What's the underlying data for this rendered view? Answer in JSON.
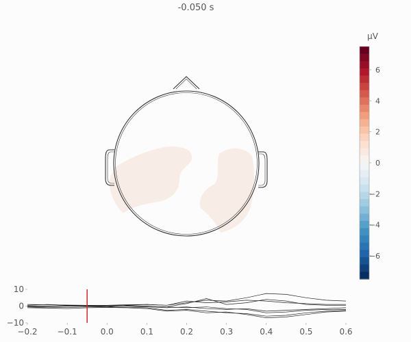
{
  "chart_data": [
    {
      "type": "heatmap",
      "title": "-0.050 s",
      "colorbar": {
        "label": "µV",
        "ticks": [
          {
            "value": 6,
            "label": "6"
          },
          {
            "value": 4,
            "label": "4"
          },
          {
            "value": 2,
            "label": "2"
          },
          {
            "value": 0,
            "label": "0"
          },
          {
            "value": -2,
            "label": "−2"
          },
          {
            "value": -4,
            "label": "−4"
          },
          {
            "value": -6,
            "label": "−6"
          }
        ],
        "range": [
          -7.5,
          7.5
        ],
        "colormap": "RdBu_r",
        "colors": {
          "max": "#67001f",
          "mid": "#f7f7f7",
          "min": "#053061"
        }
      },
      "topomap_value_uV": 0.2,
      "topomap_fill_color": "#f8ece6"
    },
    {
      "type": "line",
      "xlim": [
        -0.2,
        0.6
      ],
      "ylim": [
        -10,
        10
      ],
      "xticks": [
        {
          "value": -0.2,
          "label": "−0.2"
        },
        {
          "value": -0.1,
          "label": "−0.1"
        },
        {
          "value": 0.0,
          "label": "0.0"
        },
        {
          "value": 0.1,
          "label": "0.1"
        },
        {
          "value": 0.2,
          "label": "0.2"
        },
        {
          "value": 0.3,
          "label": "0.3"
        },
        {
          "value": 0.4,
          "label": "0.4"
        },
        {
          "value": 0.5,
          "label": "0.5"
        },
        {
          "value": 0.6,
          "label": "0.6"
        }
      ],
      "yticks": [
        {
          "value": 10,
          "label": "10"
        },
        {
          "value": 0,
          "label": "0"
        },
        {
          "value": -10,
          "label": "−10"
        }
      ],
      "time_cursor": -0.05,
      "cursor_color": "#d62728",
      "x": [
        -0.2,
        -0.15,
        -0.1,
        -0.05,
        0.0,
        0.05,
        0.1,
        0.15,
        0.2,
        0.25,
        0.3,
        0.35,
        0.4,
        0.45,
        0.5,
        0.55,
        0.6
      ],
      "series": [
        {
          "values": [
            0.5,
            1.0,
            0.5,
            0.0,
            -0.5,
            0.5,
            1.0,
            0.5,
            2.0,
            3.5,
            3.0,
            5.0,
            7.5,
            7.0,
            5.0,
            3.5,
            3.0
          ]
        },
        {
          "values": [
            1.0,
            0.8,
            0.6,
            0.5,
            0.5,
            0.3,
            0.0,
            -0.5,
            1.5,
            4.5,
            1.0,
            2.0,
            4.0,
            3.0,
            1.0,
            0.5,
            0.5
          ]
        },
        {
          "values": [
            -0.5,
            -0.3,
            0.0,
            0.2,
            0.5,
            0.8,
            1.0,
            0.5,
            3.0,
            2.0,
            2.5,
            3.5,
            3.0,
            2.0,
            1.5,
            1.0,
            1.0
          ]
        },
        {
          "values": [
            0.0,
            0.0,
            0.3,
            0.5,
            0.2,
            0.0,
            -0.5,
            -1.0,
            -0.5,
            -1.5,
            -2.0,
            -1.5,
            -3.0,
            -2.5,
            -2.0,
            -1.5,
            -1.0
          ]
        },
        {
          "values": [
            -0.5,
            -1.0,
            -0.8,
            -0.5,
            -0.5,
            -0.8,
            -1.0,
            -2.5,
            -2.0,
            -3.0,
            -4.0,
            -4.5,
            -6.0,
            -5.5,
            -4.0,
            -3.0,
            -2.5
          ]
        },
        {
          "values": [
            -1.0,
            -1.2,
            -1.5,
            -1.0,
            -0.8,
            -1.0,
            -1.5,
            -3.0,
            -2.5,
            -4.0,
            -3.5,
            -5.0,
            -7.0,
            -6.5,
            -5.0,
            -3.5,
            -3.0
          ]
        },
        {
          "values": [
            0.0,
            0.0,
            0.0,
            0.0,
            0.0,
            0.0,
            0.0,
            -0.5,
            -1.0,
            -0.5,
            -1.5,
            -2.0,
            -4.0,
            -3.5,
            -2.5,
            -2.0,
            -2.0
          ]
        }
      ]
    }
  ]
}
